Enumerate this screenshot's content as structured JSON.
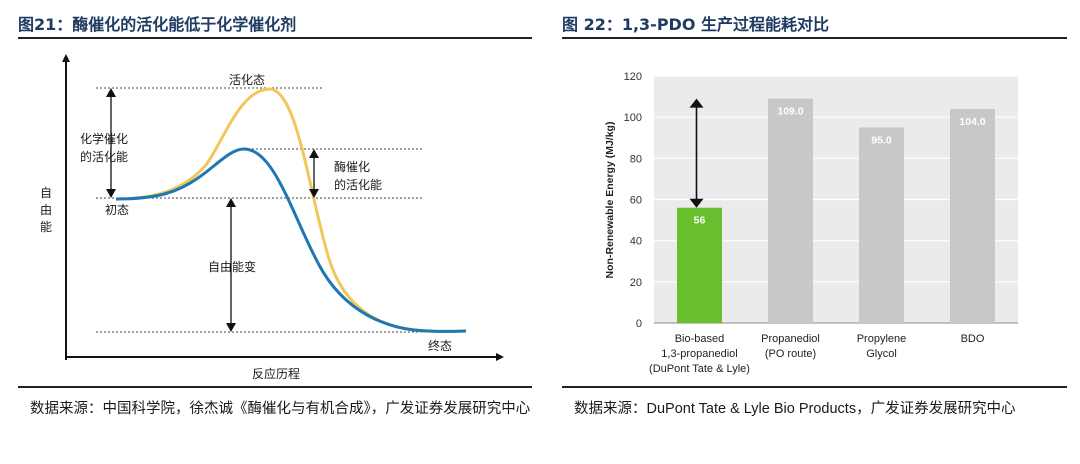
{
  "left": {
    "title": "图21：酶催化的活化能低于化学催化剂",
    "source": "数据来源：中国科学院，徐杰诚《酶催化与有机合成》，广发证券发展研究中心",
    "diagram": {
      "y_axis_label": [
        "自",
        "由",
        "能"
      ],
      "x_axis_label": "反应历程",
      "activated_state": "活化态",
      "initial_state": "初态",
      "final_state": "终态",
      "chemical_ea": [
        "化学催化",
        "的活化能"
      ],
      "enzyme_ea": [
        "酶催化",
        "的活化能"
      ],
      "free_energy_change": "自由能变",
      "colors": {
        "chemical_curve": "#f0c85a",
        "enzyme_curve": "#1f77b4"
      }
    }
  },
  "right": {
    "title": "图 22：1,3-PDO 生产过程能耗对比",
    "source_prefix": "数据来源：",
    "source_body": "DuPont Tate & Lyle Bio Products，广发证券发展研究中心"
  },
  "chart_data": {
    "type": "bar",
    "categories": [
      [
        "Bio-based",
        "1,3-propanediol",
        "(DuPont Tate & Lyle)"
      ],
      [
        "Propanediol",
        "(PO route)"
      ],
      [
        "Propylene",
        "Glycol"
      ],
      [
        "BDO"
      ]
    ],
    "values": [
      56,
      109,
      95,
      104
    ],
    "data_labels": [
      "56",
      "109.0",
      "95.0",
      "104.0"
    ],
    "ylabel": "Non-Renewable Energy (MJ/kg)",
    "ylim": [
      0,
      120
    ],
    "yticks": [
      0,
      20,
      40,
      60,
      80,
      100,
      120
    ],
    "grid": true,
    "bar_colors": [
      "#6abf2e",
      "#c8c8c8",
      "#c8c8c8",
      "#c8c8c8"
    ],
    "annotation": "double-headed arrow from 56 up to 109"
  }
}
